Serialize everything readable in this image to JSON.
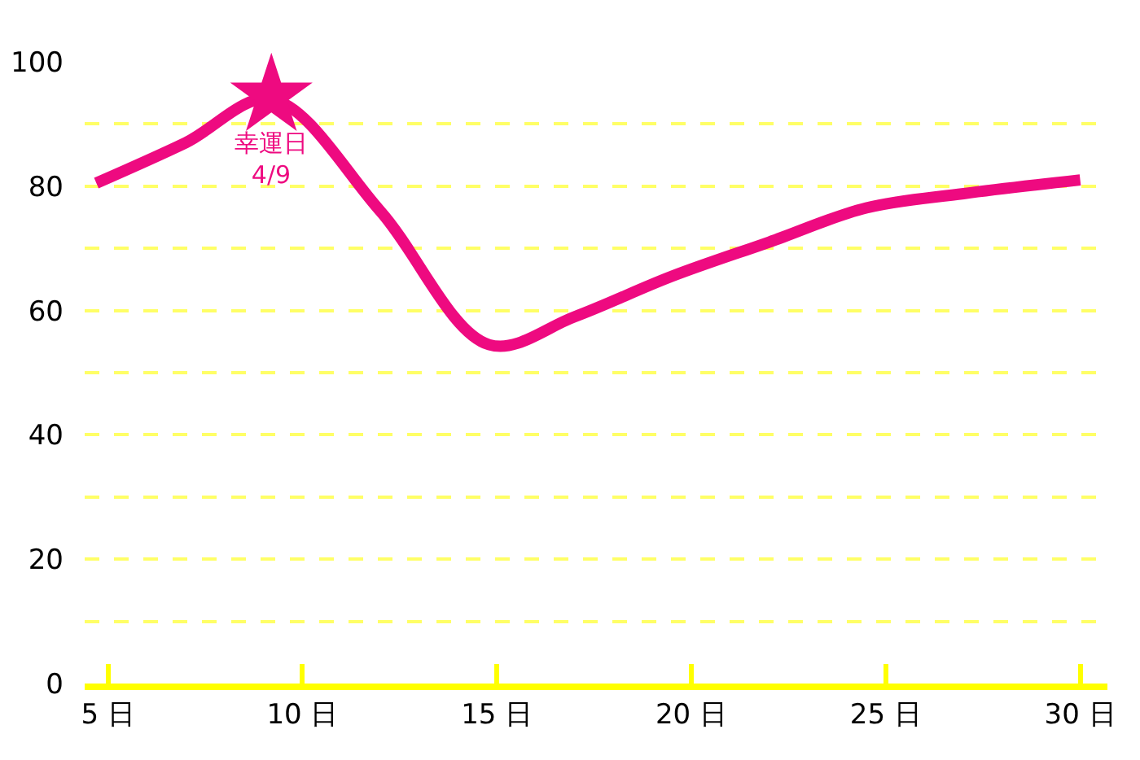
{
  "chart_data": {
    "type": "line",
    "x": [
      4.7,
      7,
      9.2,
      12,
      14.8,
      17,
      19.5,
      22,
      24.5,
      27,
      30
    ],
    "series": [
      {
        "color": "#ee0a80",
        "values": [
          80.5,
          87,
          94,
          76,
          54.5,
          59,
          65.5,
          71,
          76.5,
          78.8,
          81
        ]
      },
      {
        "type": "scatter",
        "marker": "star",
        "color": "#ee0a80",
        "x": [
          9.2
        ],
        "values": [
          94.5
        ]
      }
    ],
    "annotations": [
      {
        "text": "幸運日\n4/9",
        "x": 9.2,
        "y": 94.5
      }
    ],
    "xlim": [
      4.4,
      30.7
    ],
    "xticks": [
      {
        "value": 5,
        "label": "5 日"
      },
      {
        "value": 10,
        "label": "10 日"
      },
      {
        "value": 15,
        "label": "15 日"
      },
      {
        "value": 20,
        "label": "20 日"
      },
      {
        "value": 25,
        "label": "25 日"
      },
      {
        "value": 30,
        "label": "30 日"
      }
    ],
    "ylim": [
      0,
      100
    ],
    "yticks": [
      0,
      {
        "value": 10,
        "label": null
      },
      20,
      {
        "value": 30,
        "label": null
      },
      40,
      {
        "value": 50,
        "label": null
      },
      60,
      {
        "value": 70,
        "label": null
      },
      80,
      {
        "value": 90,
        "label": null
      },
      100
    ],
    "grid": "y",
    "line_style": "solid",
    "marker": "none"
  }
}
